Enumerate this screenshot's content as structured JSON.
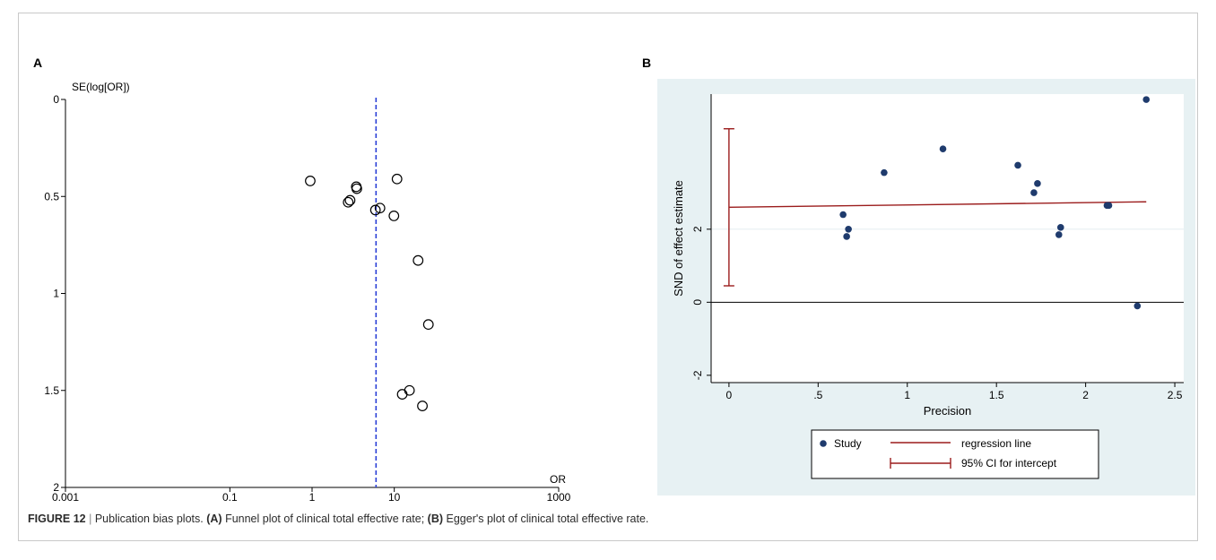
{
  "figure": {
    "number_label": "FIGURE 12",
    "separator": "|",
    "caption_intro": "Publication bias plots.",
    "caption_a_tag": "(A)",
    "caption_a_text": "Funnel plot of clinical total effective rate;",
    "caption_b_tag": "(B)",
    "caption_b_text": "Egger's plot of clinical total effective rate."
  },
  "panels": {
    "a_label": "A",
    "b_label": "B"
  },
  "chart_data": [
    {
      "panel": "A",
      "type": "scatter",
      "title": "",
      "xlabel": "OR",
      "ylabel": "SE(log[OR])",
      "x_scale": "log",
      "x_ticks": [
        0.001,
        0.1,
        1,
        10,
        1000
      ],
      "x_tick_labels": [
        "0.001",
        "0.1",
        "1",
        "10",
        "1000"
      ],
      "xlim": [
        0.001,
        1000
      ],
      "y_reversed": true,
      "y_ticks": [
        0,
        0.5,
        1,
        1.5,
        2
      ],
      "y_tick_labels": [
        "0",
        "0.5",
        "1",
        "1.5",
        "2"
      ],
      "ylim": [
        0,
        2
      ],
      "pooled_or": 6.0,
      "pooled_line_color": "#2a3fd6",
      "marker": "open-circle",
      "points": [
        {
          "or": 0.95,
          "se": 0.42
        },
        {
          "or": 2.75,
          "se": 0.53
        },
        {
          "or": 2.9,
          "se": 0.52
        },
        {
          "or": 3.45,
          "se": 0.45
        },
        {
          "or": 3.5,
          "se": 0.46
        },
        {
          "or": 5.9,
          "se": 0.57
        },
        {
          "or": 6.7,
          "se": 0.56
        },
        {
          "or": 9.9,
          "se": 0.6
        },
        {
          "or": 10.8,
          "se": 0.41
        },
        {
          "or": 12.5,
          "se": 1.52
        },
        {
          "or": 15.3,
          "se": 1.5
        },
        {
          "or": 19.5,
          "se": 0.83
        },
        {
          "or": 22.0,
          "se": 1.58
        },
        {
          "or": 26.0,
          "se": 1.16
        }
      ]
    },
    {
      "panel": "B",
      "type": "scatter",
      "title": "",
      "xlabel": "Precision",
      "ylabel": "SND of effect estimate",
      "x_ticks": [
        0,
        0.5,
        1,
        1.5,
        2,
        2.5
      ],
      "x_tick_labels": [
        "0",
        ".5",
        "1",
        "1.5",
        "2",
        "2.5"
      ],
      "xlim": [
        -0.1,
        2.55
      ],
      "y_ticks": [
        -2,
        0,
        2
      ],
      "y_tick_labels": [
        "-2",
        "0",
        "2"
      ],
      "ylim": [
        -2.2,
        5.7
      ],
      "point_color": "#1f3b6d",
      "regression_color": "#9b1c1c",
      "points": [
        {
          "x": 0.64,
          "y": 2.4
        },
        {
          "x": 0.66,
          "y": 1.8
        },
        {
          "x": 0.67,
          "y": 2.0
        },
        {
          "x": 0.87,
          "y": 3.55
        },
        {
          "x": 1.2,
          "y": 4.2
        },
        {
          "x": 1.62,
          "y": 3.75
        },
        {
          "x": 1.71,
          "y": 3.0
        },
        {
          "x": 1.73,
          "y": 3.25
        },
        {
          "x": 1.85,
          "y": 1.85
        },
        {
          "x": 1.86,
          "y": 2.05
        },
        {
          "x": 2.12,
          "y": 2.65
        },
        {
          "x": 2.13,
          "y": 2.65
        },
        {
          "x": 2.29,
          "y": -0.1
        },
        {
          "x": 2.34,
          "y": 5.55
        }
      ],
      "regression_line": {
        "x0": 0,
        "y0": 2.6,
        "x1": 2.34,
        "y1": 2.75
      },
      "ci_intercept": {
        "low": 0.45,
        "high": 4.75
      },
      "reference_line_y": 0,
      "legend": [
        {
          "kind": "marker",
          "label": "Study"
        },
        {
          "kind": "line",
          "label": "regression line"
        },
        {
          "kind": "errorbar",
          "label": "95% CI for intercept"
        }
      ],
      "legend_position": "bottom"
    }
  ]
}
